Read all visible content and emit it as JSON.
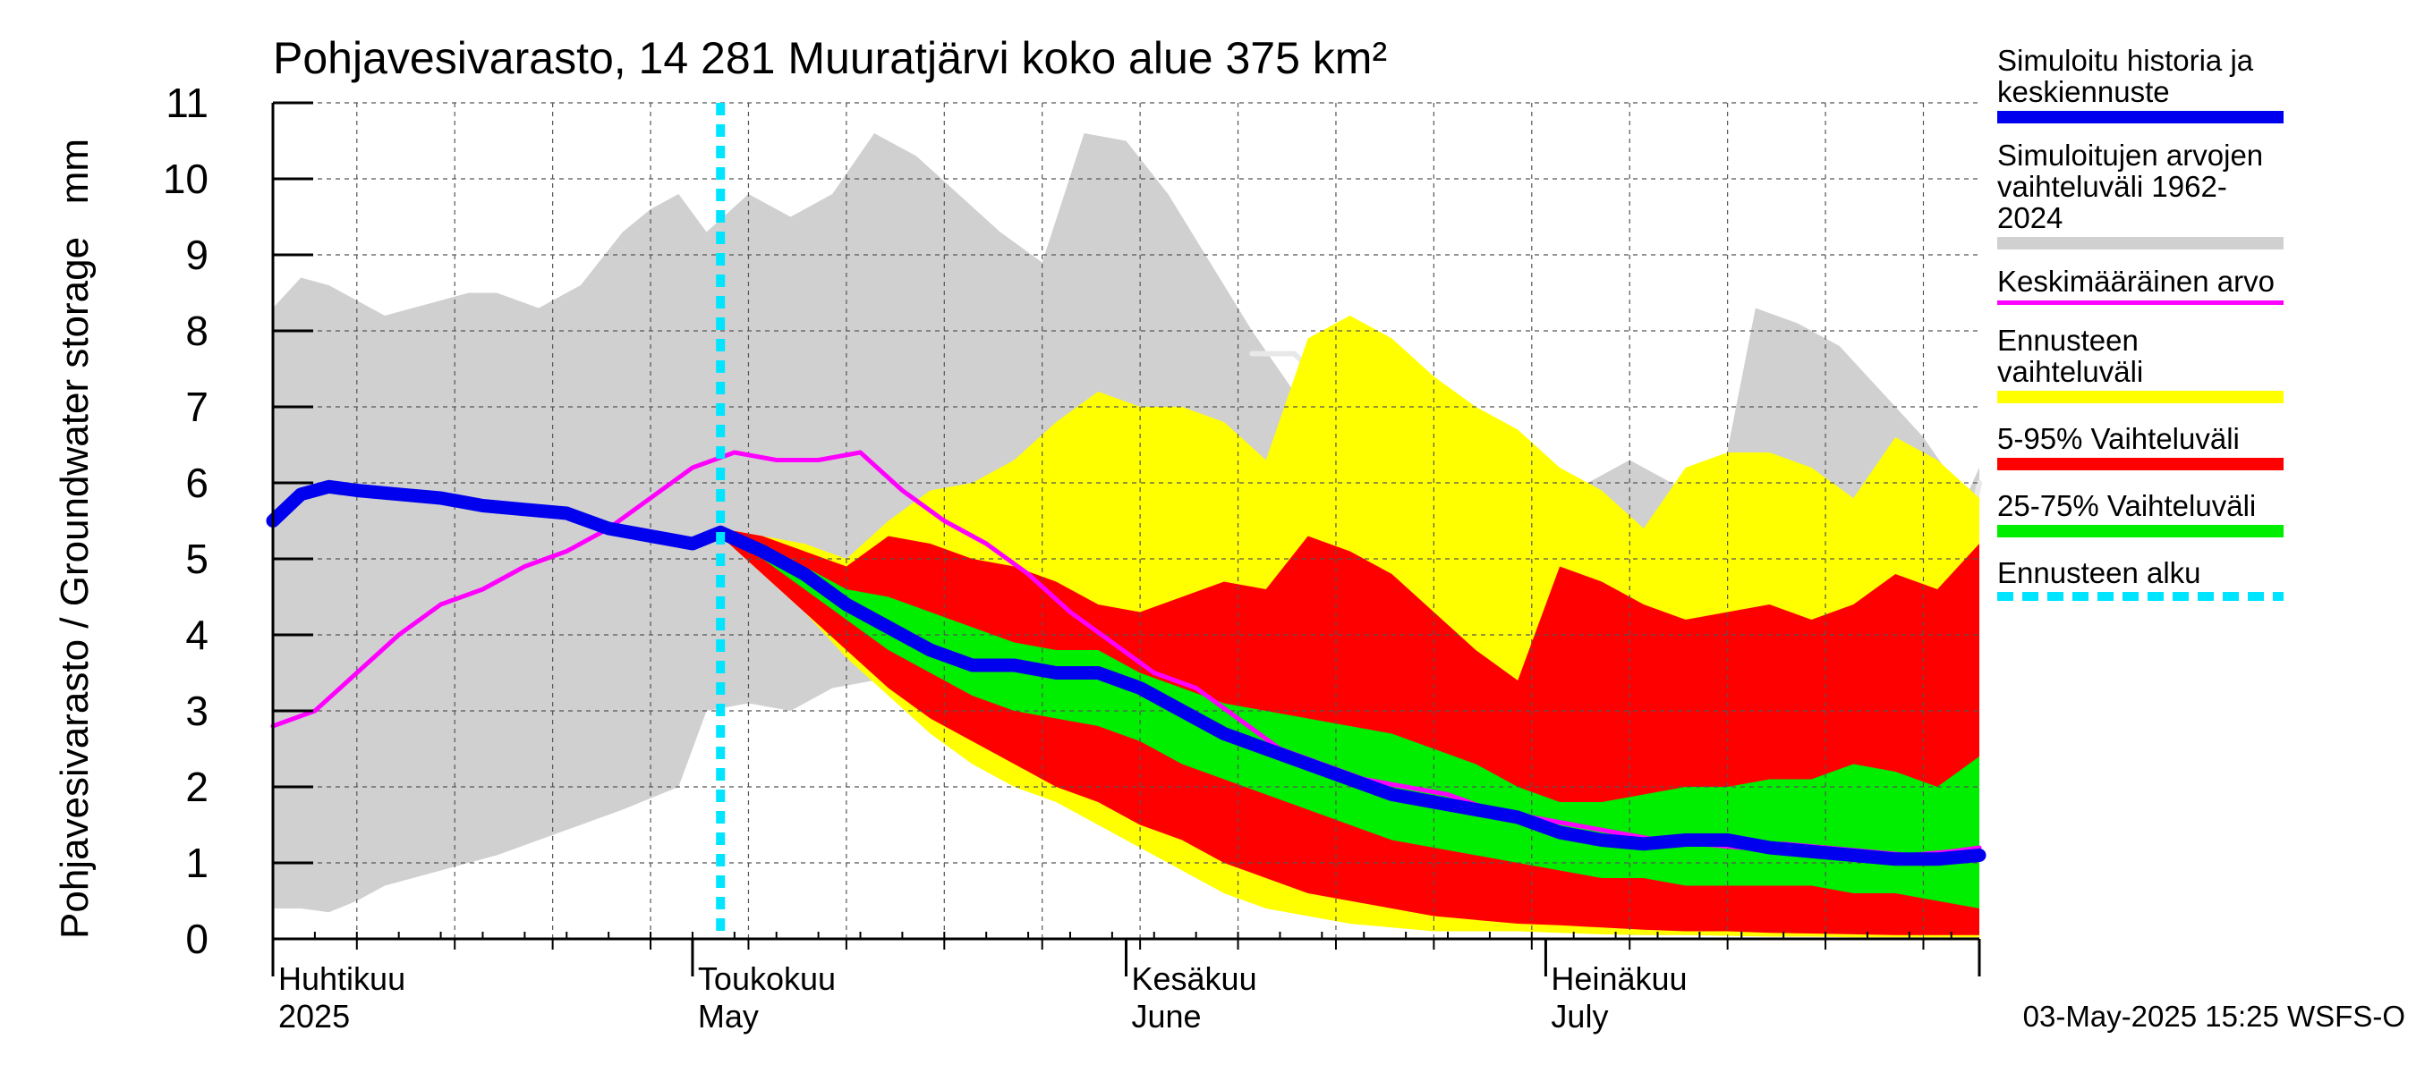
{
  "chart_data": {
    "type": "area",
    "title": "Pohjavesivarasto, 14 281 Muuratjärvi koko alue 375 km²",
    "ylabel": "Pohjavesivarasto / Groundwater storage   mm",
    "ylim": [
      0,
      11
    ],
    "yticks": [
      0,
      1,
      2,
      3,
      4,
      5,
      6,
      7,
      8,
      9,
      10,
      11
    ],
    "xlim": [
      "2025-04-01",
      "2025-08-01"
    ],
    "grid": true,
    "month_labels": [
      {
        "date": "2025-04-01",
        "fi": "Huhtikuu",
        "en": "2025"
      },
      {
        "date": "2025-05-01",
        "fi": "Toukokuu",
        "en": "May"
      },
      {
        "date": "2025-06-01",
        "fi": "Kesäkuu",
        "en": "June"
      },
      {
        "date": "2025-07-01",
        "fi": "Heinäkuu",
        "en": "July"
      }
    ],
    "forecast_start": "2025-05-03",
    "series": [
      {
        "name": "Simuloitujen arvojen vaihteluväli 1962-2024",
        "color": "#d0d0d0",
        "x": [
          "2025-04-01",
          "2025-04-03",
          "2025-04-05",
          "2025-04-07",
          "2025-04-09",
          "2025-04-11",
          "2025-04-13",
          "2025-04-15",
          "2025-04-17",
          "2025-04-20",
          "2025-04-23",
          "2025-04-26",
          "2025-04-28",
          "2025-04-30",
          "2025-05-02",
          "2025-05-05",
          "2025-05-08",
          "2025-05-11",
          "2025-05-14",
          "2025-05-17",
          "2025-05-20",
          "2025-05-23",
          "2025-05-26",
          "2025-05-29",
          "2025-06-01",
          "2025-06-04",
          "2025-06-07",
          "2025-06-10",
          "2025-06-13",
          "2025-06-16",
          "2025-06-19",
          "2025-06-22",
          "2025-06-25",
          "2025-06-28",
          "2025-07-01",
          "2025-07-04",
          "2025-07-07",
          "2025-07-10",
          "2025-07-13",
          "2025-07-16",
          "2025-07-19",
          "2025-07-22",
          "2025-07-25",
          "2025-07-28",
          "2025-07-31",
          "2025-08-01"
        ],
        "low": [
          0.4,
          0.4,
          0.35,
          0.5,
          0.7,
          0.8,
          0.9,
          1.0,
          1.1,
          1.3,
          1.5,
          1.7,
          1.85,
          2.0,
          3.0,
          3.1,
          3.0,
          3.3,
          3.4,
          3.4,
          3.5,
          3.2,
          2.8,
          2.5,
          2.2,
          1.8,
          1.4,
          1.0,
          0.7,
          0.5,
          0.3,
          0.2,
          0.15,
          0.1,
          0.1,
          0.1,
          0.05,
          0.05,
          0.05,
          0.05,
          0.03,
          0.03,
          0.02,
          0.02,
          0.02,
          0.02
        ],
        "high": [
          8.3,
          8.7,
          8.6,
          8.4,
          8.2,
          8.3,
          8.4,
          8.5,
          8.5,
          8.3,
          8.6,
          9.3,
          9.6,
          9.8,
          9.3,
          9.8,
          9.5,
          9.8,
          10.6,
          10.3,
          9.8,
          9.3,
          8.9,
          10.6,
          10.5,
          9.8,
          8.9,
          8.0,
          7.2,
          6.7,
          6.2,
          5.9,
          5.8,
          5.6,
          5.4,
          6.0,
          6.3,
          6.0,
          5.5,
          8.3,
          8.1,
          7.8,
          7.2,
          6.6,
          5.8,
          6.2
        ],
        "line": [
          null,
          null,
          null,
          null,
          null,
          null,
          null,
          null,
          null,
          null,
          null,
          null,
          null,
          null,
          null,
          null,
          null,
          null,
          null,
          null,
          null,
          null,
          null,
          null,
          null,
          null,
          null,
          7.7,
          7.7,
          7.2,
          6.8,
          6.4,
          6.0,
          5.6,
          5.3,
          5.3,
          5.3,
          5.4,
          5.3,
          6.0,
          5.8,
          5.6,
          5.4,
          5.2,
          5.1,
          6.0
        ]
      },
      {
        "name": "Ennusteen vaihteluväli",
        "color": "#ffff00",
        "x": [
          "2025-05-03",
          "2025-05-06",
          "2025-05-09",
          "2025-05-12",
          "2025-05-15",
          "2025-05-18",
          "2025-05-21",
          "2025-05-24",
          "2025-05-27",
          "2025-05-30",
          "2025-06-02",
          "2025-06-05",
          "2025-06-08",
          "2025-06-11",
          "2025-06-14",
          "2025-06-17",
          "2025-06-20",
          "2025-06-23",
          "2025-06-26",
          "2025-06-29",
          "2025-07-02",
          "2025-07-05",
          "2025-07-08",
          "2025-07-11",
          "2025-07-14",
          "2025-07-17",
          "2025-07-20",
          "2025-07-23",
          "2025-07-26",
          "2025-07-29",
          "2025-08-01"
        ],
        "low": [
          5.3,
          4.8,
          4.3,
          3.7,
          3.2,
          2.7,
          2.3,
          2.0,
          1.8,
          1.5,
          1.2,
          0.9,
          0.6,
          0.4,
          0.3,
          0.2,
          0.15,
          0.1,
          0.1,
          0.1,
          0.08,
          0.06,
          0.05,
          0.05,
          0.04,
          0.03,
          0.03,
          0.02,
          0.02,
          0.02,
          0.02
        ],
        "high": [
          5.4,
          5.3,
          5.2,
          5.0,
          5.5,
          5.9,
          6.0,
          6.3,
          6.8,
          7.2,
          7.0,
          7.0,
          6.8,
          6.3,
          7.9,
          8.2,
          7.9,
          7.4,
          7.0,
          6.7,
          6.2,
          5.9,
          5.4,
          6.2,
          6.4,
          6.4,
          6.2,
          5.8,
          6.6,
          6.3,
          5.8
        ]
      },
      {
        "name": "5-95% Vaihteluväli",
        "color": "#ff0000",
        "x": [
          "2025-05-03",
          "2025-05-06",
          "2025-05-09",
          "2025-05-12",
          "2025-05-15",
          "2025-05-18",
          "2025-05-21",
          "2025-05-24",
          "2025-05-27",
          "2025-05-30",
          "2025-06-02",
          "2025-06-05",
          "2025-06-08",
          "2025-06-11",
          "2025-06-14",
          "2025-06-17",
          "2025-06-20",
          "2025-06-23",
          "2025-06-26",
          "2025-06-29",
          "2025-07-02",
          "2025-07-05",
          "2025-07-08",
          "2025-07-11",
          "2025-07-14",
          "2025-07-17",
          "2025-07-20",
          "2025-07-23",
          "2025-07-26",
          "2025-07-29",
          "2025-08-01"
        ],
        "low": [
          5.3,
          4.8,
          4.3,
          3.8,
          3.3,
          2.9,
          2.6,
          2.3,
          2.0,
          1.8,
          1.5,
          1.3,
          1.0,
          0.8,
          0.6,
          0.5,
          0.4,
          0.3,
          0.25,
          0.2,
          0.18,
          0.15,
          0.12,
          0.1,
          0.1,
          0.08,
          0.07,
          0.06,
          0.05,
          0.05,
          0.05
        ],
        "high": [
          5.4,
          5.3,
          5.1,
          4.9,
          5.3,
          5.2,
          5.0,
          4.9,
          4.7,
          4.4,
          4.3,
          4.5,
          4.7,
          4.6,
          5.3,
          5.1,
          4.8,
          4.3,
          3.8,
          3.4,
          4.9,
          4.7,
          4.4,
          4.2,
          4.3,
          4.4,
          4.2,
          4.4,
          4.8,
          4.6,
          5.2
        ]
      },
      {
        "name": "25-75% Vaihteluväli",
        "color": "#00ee00",
        "x": [
          "2025-05-03",
          "2025-05-06",
          "2025-05-09",
          "2025-05-12",
          "2025-05-15",
          "2025-05-18",
          "2025-05-21",
          "2025-05-24",
          "2025-05-27",
          "2025-05-30",
          "2025-06-02",
          "2025-06-05",
          "2025-06-08",
          "2025-06-11",
          "2025-06-14",
          "2025-06-17",
          "2025-06-20",
          "2025-06-23",
          "2025-06-26",
          "2025-06-29",
          "2025-07-02",
          "2025-07-05",
          "2025-07-08",
          "2025-07-11",
          "2025-07-14",
          "2025-07-17",
          "2025-07-20",
          "2025-07-23",
          "2025-07-26",
          "2025-07-29",
          "2025-08-01"
        ],
        "low": [
          5.3,
          5.0,
          4.6,
          4.2,
          3.8,
          3.5,
          3.2,
          3.0,
          2.9,
          2.8,
          2.6,
          2.3,
          2.1,
          1.9,
          1.7,
          1.5,
          1.3,
          1.2,
          1.1,
          1.0,
          0.9,
          0.8,
          0.8,
          0.7,
          0.7,
          0.7,
          0.7,
          0.6,
          0.6,
          0.5,
          0.4
        ],
        "high": [
          5.4,
          5.2,
          4.9,
          4.6,
          4.5,
          4.3,
          4.1,
          3.9,
          3.8,
          3.8,
          3.5,
          3.3,
          3.1,
          3.0,
          2.9,
          2.8,
          2.7,
          2.5,
          2.3,
          2.0,
          1.8,
          1.8,
          1.9,
          2.0,
          2.0,
          2.1,
          2.1,
          2.3,
          2.2,
          2.0,
          2.4
        ]
      },
      {
        "name": "Keskimääräinen arvo",
        "color": "#ff00ff",
        "x": [
          "2025-04-01",
          "2025-04-04",
          "2025-04-07",
          "2025-04-10",
          "2025-04-13",
          "2025-04-16",
          "2025-04-19",
          "2025-04-22",
          "2025-04-25",
          "2025-04-28",
          "2025-05-01",
          "2025-05-04",
          "2025-05-07",
          "2025-05-10",
          "2025-05-13",
          "2025-05-16",
          "2025-05-19",
          "2025-05-22",
          "2025-05-25",
          "2025-05-28",
          "2025-05-31",
          "2025-06-03",
          "2025-06-06",
          "2025-06-09",
          "2025-06-12",
          "2025-06-15",
          "2025-06-18",
          "2025-06-21",
          "2025-06-24",
          "2025-06-27",
          "2025-06-30",
          "2025-07-03",
          "2025-07-06",
          "2025-07-09",
          "2025-07-12",
          "2025-07-15",
          "2025-07-18",
          "2025-07-21",
          "2025-07-24",
          "2025-07-27",
          "2025-07-30",
          "2025-08-01"
        ],
        "values": [
          2.8,
          3.0,
          3.5,
          4.0,
          4.4,
          4.6,
          4.9,
          5.1,
          5.4,
          5.8,
          6.2,
          6.4,
          6.3,
          6.3,
          6.4,
          5.9,
          5.5,
          5.2,
          4.8,
          4.3,
          3.9,
          3.5,
          3.3,
          2.9,
          2.5,
          2.3,
          2.1,
          2.0,
          1.9,
          1.7,
          1.6,
          1.5,
          1.4,
          1.3,
          1.25,
          1.2,
          1.25,
          1.2,
          1.15,
          1.1,
          1.15,
          1.2
        ]
      },
      {
        "name": "Simuloitu historia ja keskiennuste",
        "color": "#0000ee",
        "x": [
          "2025-04-01",
          "2025-04-03",
          "2025-04-05",
          "2025-04-07",
          "2025-04-10",
          "2025-04-13",
          "2025-04-16",
          "2025-04-19",
          "2025-04-22",
          "2025-04-25",
          "2025-04-28",
          "2025-05-01",
          "2025-05-03",
          "2025-05-06",
          "2025-05-09",
          "2025-05-12",
          "2025-05-15",
          "2025-05-18",
          "2025-05-21",
          "2025-05-24",
          "2025-05-27",
          "2025-05-30",
          "2025-06-02",
          "2025-06-05",
          "2025-06-08",
          "2025-06-11",
          "2025-06-14",
          "2025-06-17",
          "2025-06-20",
          "2025-06-23",
          "2025-06-26",
          "2025-06-29",
          "2025-07-02",
          "2025-07-05",
          "2025-07-08",
          "2025-07-11",
          "2025-07-14",
          "2025-07-17",
          "2025-07-20",
          "2025-07-23",
          "2025-07-26",
          "2025-07-29",
          "2025-08-01"
        ],
        "values": [
          5.5,
          5.85,
          5.95,
          5.9,
          5.85,
          5.8,
          5.7,
          5.65,
          5.6,
          5.4,
          5.3,
          5.2,
          5.35,
          5.1,
          4.8,
          4.4,
          4.1,
          3.8,
          3.6,
          3.6,
          3.5,
          3.5,
          3.3,
          3.0,
          2.7,
          2.5,
          2.3,
          2.1,
          1.9,
          1.8,
          1.7,
          1.6,
          1.4,
          1.3,
          1.25,
          1.3,
          1.3,
          1.2,
          1.15,
          1.1,
          1.05,
          1.05,
          1.1
        ]
      }
    ]
  },
  "legend": [
    {
      "label": "Simuloitu historia ja\nkeskiennuste",
      "color": "#0000ee",
      "style": "solid",
      "thickness": 14
    },
    {
      "label": "Simuloitujen arvojen\nvaihteluväli 1962-2024",
      "color": "#d0d0d0",
      "style": "solid",
      "thickness": 14
    },
    {
      "label": "Keskimääräinen arvo",
      "color": "#ff00ff",
      "style": "solid",
      "thickness": 5
    },
    {
      "label": "Ennusteen vaihteluväli",
      "color": "#ffff00",
      "style": "solid",
      "thickness": 14
    },
    {
      "label": "5-95% Vaihteluväli",
      "color": "#ff0000",
      "style": "solid",
      "thickness": 14
    },
    {
      "label": "25-75% Vaihteluväli",
      "color": "#00ee00",
      "style": "solid",
      "thickness": 14
    },
    {
      "label": "Ennusteen alku",
      "color": "#00e5ff",
      "style": "dashed",
      "thickness": 10
    }
  ],
  "footer": "03-May-2025 15:25 WSFS-O"
}
